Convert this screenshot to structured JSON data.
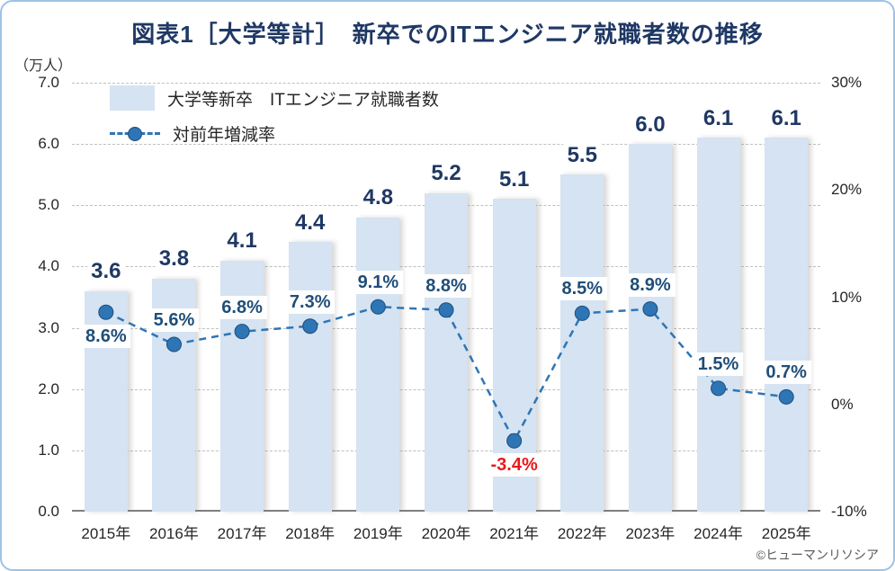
{
  "title": "図表1［大学等計］　新卒でのITエンジニア就職者数の推移",
  "footer": "©ヒューマンリソシア",
  "axis": {
    "unit_label": "（万人）",
    "left_ticks": [
      "7.0",
      "6.0",
      "5.0",
      "4.0",
      "3.0",
      "2.0",
      "1.0",
      "0.0"
    ],
    "right_ticks": [
      "30%",
      "20%",
      "10%",
      "0%",
      "-10%"
    ]
  },
  "legend": {
    "bar_label": "大学等新卒　ITエンジニア就職者数",
    "line_label": "対前年増減率"
  },
  "colors": {
    "card_border": "#9dc3e6",
    "title": "#1f3864",
    "bar_fill": "#d5e3f2",
    "line": "#2e75b6",
    "dot_fill": "#2e75b6",
    "dot_border": "#1f4e79",
    "value_label": "#1f3864",
    "pct_label": "#1f4e79",
    "pct_negative": "#e8191c",
    "grid": "#bfbfbf"
  },
  "chart_data": {
    "type": "combo-bar-line",
    "title": "図表1［大学等計］　新卒でのITエンジニア就職者数の推移",
    "categories": [
      "2015年",
      "2016年",
      "2017年",
      "2018年",
      "2019年",
      "2020年",
      "2021年",
      "2022年",
      "2023年",
      "2024年",
      "2025年"
    ],
    "series": [
      {
        "name": "大学等新卒　ITエンジニア就職者数",
        "type": "bar",
        "axis": "left",
        "values": [
          3.6,
          3.8,
          4.1,
          4.4,
          4.8,
          5.2,
          5.1,
          5.5,
          6.0,
          6.1,
          6.1
        ]
      },
      {
        "name": "対前年増減率",
        "type": "line",
        "axis": "right",
        "values": [
          8.6,
          5.6,
          6.8,
          7.3,
          9.1,
          8.8,
          -3.4,
          8.5,
          8.9,
          1.5,
          0.7
        ],
        "label_positions": [
          "below",
          "above",
          "above",
          "above",
          "above",
          "above",
          "below",
          "above",
          "above",
          "above",
          "above"
        ]
      }
    ],
    "xlabel": "",
    "ylabel_left": "（万人）",
    "ylim_left": [
      0,
      7
    ],
    "ylim_right": [
      -10,
      30
    ],
    "grid": true,
    "legend_position": "top-left"
  }
}
